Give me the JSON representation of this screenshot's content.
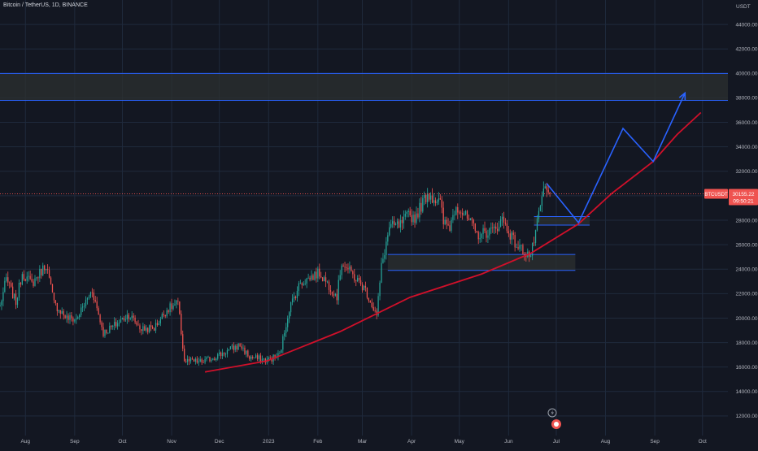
{
  "header": {
    "symbol_title": "Bitcoin / TetherUS, 1D, BINANCE",
    "unit": "USDT"
  },
  "colors": {
    "background": "#131722",
    "grid": "#1f2a3c",
    "up": "#26a69a",
    "down": "#ef5350",
    "zone_fill": "#2c3030",
    "zone_border": "#2962ff",
    "projection": "#2962ff",
    "support_curve": "#d0102a",
    "price_tag": "#ef5350"
  },
  "price_tag": {
    "symbol": "BTCUSDT",
    "price": "30155.22",
    "countdown": "09:50:21"
  },
  "chart_data": {
    "type": "candlestick",
    "title": "Bitcoin / TetherUS, 1D, BINANCE",
    "ylabel": "USDT",
    "ylim": [
      10400,
      46000
    ],
    "y_ticks": [
      "12000.00",
      "14000.00",
      "16000.00",
      "18000.00",
      "20000.00",
      "22000.00",
      "24000.00",
      "26000.00",
      "28000.00",
      "30000.00",
      "32000.00",
      "34000.00",
      "36000.00",
      "38000.00",
      "40000.00",
      "42000.00",
      "44000.00"
    ],
    "x_ticks": [
      "Aug",
      "Sep",
      "Oct",
      "Nov",
      "Dec",
      "2023",
      "Feb",
      "Mar",
      "Apr",
      "May",
      "Jun",
      "Jul",
      "Aug",
      "Sep",
      "Oct"
    ],
    "x_range": [
      "2022-07-16",
      "2023-10-17"
    ],
    "last_price": 30155.22,
    "anchors": [
      [
        "2022-07-16",
        21000
      ],
      [
        "2022-07-20",
        23200
      ],
      [
        "2022-07-26",
        21300
      ],
      [
        "2022-07-30",
        23700
      ],
      [
        "2022-08-05",
        22800
      ],
      [
        "2022-08-14",
        24400
      ],
      [
        "2022-08-19",
        21200
      ],
      [
        "2022-08-27",
        20000
      ],
      [
        "2022-09-02",
        19900
      ],
      [
        "2022-09-12",
        22300
      ],
      [
        "2022-09-19",
        18800
      ],
      [
        "2022-09-25",
        19300
      ],
      [
        "2022-10-05",
        20300
      ],
      [
        "2022-10-13",
        19100
      ],
      [
        "2022-10-21",
        19200
      ],
      [
        "2022-10-29",
        20700
      ],
      [
        "2022-11-05",
        21200
      ],
      [
        "2022-11-09",
        16500
      ],
      [
        "2022-11-20",
        16400
      ],
      [
        "2022-12-01",
        17000
      ],
      [
        "2022-12-14",
        17800
      ],
      [
        "2022-12-20",
        16800
      ],
      [
        "2022-12-31",
        16550
      ],
      [
        "2023-01-08",
        17000
      ],
      [
        "2023-01-14",
        20800
      ],
      [
        "2023-01-21",
        22900
      ],
      [
        "2023-02-02",
        23700
      ],
      [
        "2023-02-13",
        21800
      ],
      [
        "2023-02-16",
        24600
      ],
      [
        "2023-02-25",
        23200
      ],
      [
        "2023-03-03",
        22300
      ],
      [
        "2023-03-10",
        20200
      ],
      [
        "2023-03-13",
        24200
      ],
      [
        "2023-03-18",
        27400
      ],
      [
        "2023-03-25",
        27600
      ],
      [
        "2023-03-30",
        28400
      ],
      [
        "2023-04-03",
        28200
      ],
      [
        "2023-04-11",
        30200
      ],
      [
        "2023-04-19",
        29400
      ],
      [
        "2023-04-21",
        27800
      ],
      [
        "2023-04-25",
        27500
      ],
      [
        "2023-04-29",
        29300
      ],
      [
        "2023-05-09",
        27600
      ],
      [
        "2023-05-12",
        26800
      ],
      [
        "2023-05-23",
        27200
      ],
      [
        "2023-05-28",
        28100
      ],
      [
        "2023-06-06",
        25900
      ],
      [
        "2023-06-15",
        25100
      ],
      [
        "2023-06-20",
        28300
      ],
      [
        "2023-06-23",
        30500
      ],
      [
        "2023-06-27",
        30155
      ]
    ],
    "annotations": {
      "resistance_zone": {
        "from": "2022-07-16",
        "to": "2023-10-17",
        "low": 37800,
        "high": 40000
      },
      "zone_mid": {
        "from": "2023-06-17",
        "to": "2023-07-22",
        "low": 27600,
        "high": 28300
      },
      "zone_low": {
        "from": "2023-03-17",
        "to": "2023-07-13",
        "low": 23900,
        "high": 25200
      },
      "support_curve": [
        [
          "2022-11-22",
          15600
        ],
        [
          "2022-12-31",
          16500
        ],
        [
          "2023-02-15",
          18900
        ],
        [
          "2023-03-31",
          21700
        ],
        [
          "2023-05-15",
          23600
        ],
        [
          "2023-06-15",
          25300
        ],
        [
          "2023-07-15",
          27700
        ],
        [
          "2023-08-05",
          30200
        ],
        [
          "2023-08-31",
          32800
        ],
        [
          "2023-09-15",
          35000
        ],
        [
          "2023-09-30",
          36800
        ]
      ],
      "projection_path": [
        [
          "2023-06-25",
          31000
        ],
        [
          "2023-07-15",
          27800
        ],
        [
          "2023-08-12",
          35500
        ],
        [
          "2023-08-31",
          32800
        ],
        [
          "2023-09-20",
          38400
        ]
      ]
    }
  }
}
